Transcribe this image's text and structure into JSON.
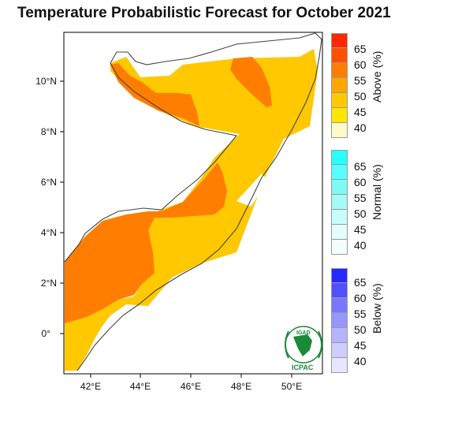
{
  "title": "Temperature Probabilistic Forecast for October 2021",
  "map": {
    "lat_labels": [
      "10°N",
      "8°N",
      "6°N",
      "4°N",
      "2°N",
      "0°"
    ],
    "lon_labels": [
      "42°E",
      "44°E",
      "46°E",
      "48°E",
      "50°E"
    ],
    "lon_range": [
      41,
      51.5
    ],
    "lat_range": [
      -1.7,
      11.9
    ],
    "region_colors": {
      "cat_45_50": "#ffc800",
      "cat_55_60": "#ff7d00"
    }
  },
  "legend": {
    "above": {
      "title": "Above (%)",
      "ticks": [
        "65",
        "60",
        "55",
        "50",
        "45",
        "40"
      ],
      "colors": [
        "#ff2800",
        "#ff5000",
        "#ff7d00",
        "#ffa500",
        "#ffc800",
        "#ffe600",
        "#fffac8"
      ]
    },
    "normal": {
      "title": "Normal (%)",
      "ticks": [
        "65",
        "60",
        "55",
        "50",
        "45",
        "40"
      ],
      "colors": [
        "#28ffff",
        "#55ffff",
        "#7dfaf5",
        "#a5fafa",
        "#c8fcfc",
        "#e1fdfd",
        "#f4fefe"
      ]
    },
    "below": {
      "title": "Below (%)",
      "ticks": [
        "65",
        "60",
        "55",
        "50",
        "45",
        "40"
      ],
      "colors": [
        "#2828ff",
        "#5050ff",
        "#7878ff",
        "#9696ff",
        "#b4b4ff",
        "#cdcdff",
        "#e6e6ff"
      ]
    }
  },
  "logo": {
    "top_text": "IGAD",
    "bottom_text": "ICPAC",
    "color": "#1a8a3a"
  }
}
